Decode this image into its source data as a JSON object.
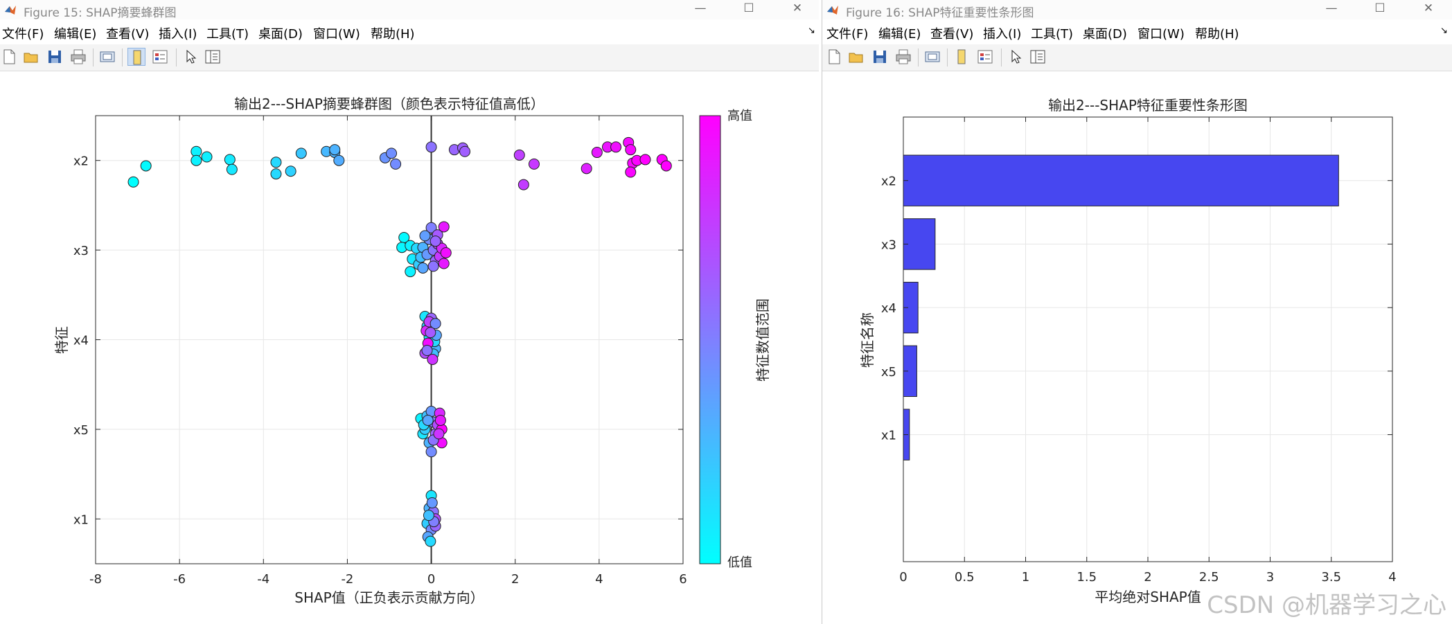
{
  "window1": {
    "title": "Figure 15: SHAP摘要蜂群图",
    "menu": [
      "文件(F)",
      "编辑(E)",
      "查看(V)",
      "插入(I)",
      "工具(T)",
      "桌面(D)",
      "窗口(W)",
      "帮助(H)"
    ]
  },
  "window2": {
    "title": "Figure 16: SHAP特征重要性条形图",
    "menu": [
      "文件(F)",
      "编辑(E)",
      "查看(V)",
      "插入(I)",
      "工具(T)",
      "桌面(D)",
      "窗口(W)",
      "帮助(H)"
    ]
  },
  "toolbar_icons": [
    "new-file-icon",
    "open-folder-icon",
    "save-icon",
    "print-icon",
    "print-preview-icon",
    "dock-figure-icon",
    "property-editor-icon",
    "pointer-icon",
    "plot-browser-icon"
  ],
  "window_controls": {
    "minimize": "—",
    "maximize": "☐",
    "close": "✕"
  },
  "watermark": "CSDN @机器学习之心",
  "colors": {
    "bar": "#4747f0",
    "colormap_low": "#00ffff",
    "colormap_high": "#ff00ff",
    "grid": "#e6e6e6"
  },
  "chart_data": [
    {
      "type": "scatter",
      "title": "输出2---SHAP摘要蜂群图（颜色表示特征值高低）",
      "xlabel": "SHAP值（正负表示贡献方向）",
      "ylabel": "特征",
      "xlim": [
        -8,
        6
      ],
      "xticks": [
        "-8",
        "-6",
        "-4",
        "-2",
        "0",
        "2",
        "4",
        "6"
      ],
      "categories": [
        "x2",
        "x3",
        "x4",
        "x5",
        "x1"
      ],
      "colorbar": {
        "label": "特征数值范围",
        "high_label": "高值",
        "low_label": "低值"
      },
      "grid": true,
      "series": [
        {
          "feature": "x2",
          "points": [
            [
              -7.1,
              -0.24,
              0.0
            ],
            [
              -6.8,
              -0.06,
              0.02
            ],
            [
              -5.6,
              0.1,
              0.05
            ],
            [
              -5.6,
              0.0,
              0.05
            ],
            [
              -5.35,
              0.04,
              0.06
            ],
            [
              -4.8,
              0.01,
              0.08
            ],
            [
              -4.75,
              -0.1,
              0.09
            ],
            [
              -3.7,
              -0.02,
              0.15
            ],
            [
              -3.7,
              -0.15,
              0.15
            ],
            [
              -3.35,
              -0.12,
              0.18
            ],
            [
              -3.1,
              0.08,
              0.22
            ],
            [
              -2.5,
              0.1,
              0.28
            ],
            [
              -2.3,
              0.09,
              0.3
            ],
            [
              -2.3,
              0.12,
              0.3
            ],
            [
              -2.2,
              0.0,
              0.32
            ],
            [
              -1.1,
              0.03,
              0.42
            ],
            [
              -0.95,
              0.08,
              0.44
            ],
            [
              -0.85,
              -0.04,
              0.45
            ],
            [
              0.0,
              0.15,
              0.55
            ],
            [
              0.55,
              0.12,
              0.6
            ],
            [
              0.75,
              0.14,
              0.62
            ],
            [
              0.8,
              0.1,
              0.63
            ],
            [
              2.1,
              0.06,
              0.75
            ],
            [
              2.2,
              -0.27,
              0.76
            ],
            [
              2.45,
              -0.04,
              0.78
            ],
            [
              3.7,
              -0.09,
              0.87
            ],
            [
              3.95,
              0.09,
              0.9
            ],
            [
              4.2,
              0.15,
              0.92
            ],
            [
              4.4,
              0.15,
              0.94
            ],
            [
              4.7,
              0.2,
              0.96
            ],
            [
              4.75,
              0.12,
              0.97
            ],
            [
              4.8,
              -0.03,
              0.98
            ],
            [
              4.75,
              -0.13,
              0.98
            ],
            [
              4.9,
              0.0,
              0.99
            ],
            [
              5.1,
              0.01,
              1.0
            ],
            [
              5.5,
              0.01,
              1.0
            ],
            [
              5.6,
              -0.06,
              1.0
            ]
          ]
        },
        {
          "feature": "x3",
          "points": [
            [
              -0.65,
              0.14,
              0.02
            ],
            [
              -0.7,
              0.03,
              0.03
            ],
            [
              -0.5,
              0.05,
              0.05
            ],
            [
              -0.45,
              -0.1,
              0.08
            ],
            [
              -0.5,
              -0.24,
              0.05
            ],
            [
              -0.35,
              0.02,
              0.15
            ],
            [
              -0.3,
              -0.16,
              0.2
            ],
            [
              -0.25,
              -0.08,
              0.25
            ],
            [
              -0.2,
              0.03,
              0.3
            ],
            [
              -0.2,
              -0.2,
              0.35
            ],
            [
              -0.1,
              -0.05,
              0.4
            ],
            [
              -0.05,
              0.12,
              0.45
            ],
            [
              0.0,
              0.25,
              0.5
            ],
            [
              0.05,
              0.0,
              0.55
            ],
            [
              0.1,
              -0.12,
              0.6
            ],
            [
              0.15,
              0.17,
              0.65
            ],
            [
              0.15,
              0.07,
              0.72
            ],
            [
              0.2,
              -0.07,
              0.78
            ],
            [
              0.25,
              0.02,
              0.85
            ],
            [
              0.3,
              0.26,
              0.9
            ],
            [
              0.35,
              -0.03,
              0.95
            ],
            [
              0.3,
              -0.15,
              0.9
            ],
            [
              -0.15,
              0.16,
              0.38
            ],
            [
              0.1,
              0.1,
              0.6
            ],
            [
              0.05,
              -0.18,
              0.55
            ]
          ]
        },
        {
          "feature": "x4",
          "points": [
            [
              -0.15,
              0.26,
              0.1
            ],
            [
              -0.1,
              0.15,
              0.2
            ],
            [
              -0.05,
              0.03,
              0.05
            ],
            [
              0.0,
              -0.08,
              0.4
            ],
            [
              0.05,
              0.2,
              0.5
            ],
            [
              -0.15,
              -0.15,
              0.7
            ],
            [
              0.1,
              -0.1,
              0.3
            ],
            [
              -0.12,
              0.1,
              0.85
            ],
            [
              0.0,
              0.24,
              0.6
            ],
            [
              0.08,
              -0.02,
              0.15
            ],
            [
              -0.08,
              -0.04,
              0.95
            ],
            [
              0.12,
              0.05,
              0.35
            ],
            [
              -0.05,
              0.2,
              0.75
            ],
            [
              0.05,
              -0.16,
              0.25
            ],
            [
              -0.1,
              -0.12,
              0.55
            ],
            [
              0.1,
              0.18,
              0.45
            ],
            [
              -0.02,
              0.08,
              0.65
            ],
            [
              0.03,
              -0.22,
              0.8
            ]
          ]
        },
        {
          "feature": "x5",
          "points": [
            [
              -0.25,
              0.12,
              0.05
            ],
            [
              -0.2,
              -0.05,
              0.1
            ],
            [
              -0.15,
              0.0,
              0.2
            ],
            [
              -0.1,
              0.15,
              0.25
            ],
            [
              -0.05,
              -0.15,
              0.3
            ],
            [
              0.0,
              0.2,
              0.4
            ],
            [
              0.0,
              -0.25,
              0.45
            ],
            [
              0.05,
              0.08,
              0.5
            ],
            [
              0.1,
              -0.05,
              0.6
            ],
            [
              0.15,
              0.05,
              0.7
            ],
            [
              0.2,
              0.18,
              0.85
            ],
            [
              0.25,
              -0.15,
              0.95
            ],
            [
              0.25,
              0.0,
              1.0
            ],
            [
              0.22,
              0.1,
              0.9
            ],
            [
              -0.18,
              0.05,
              0.15
            ],
            [
              0.05,
              -0.12,
              0.55
            ],
            [
              0.18,
              -0.05,
              0.8
            ],
            [
              -0.08,
              0.1,
              0.35
            ]
          ]
        },
        {
          "feature": "x1",
          "points": [
            [
              0.0,
              0.26,
              0.1
            ],
            [
              -0.05,
              0.12,
              0.3
            ],
            [
              0.05,
              0.08,
              0.55
            ],
            [
              0.1,
              0.0,
              0.7
            ],
            [
              -0.1,
              -0.05,
              0.2
            ],
            [
              0.0,
              -0.12,
              0.45
            ],
            [
              -0.08,
              -0.2,
              0.35
            ],
            [
              0.1,
              -0.08,
              0.6
            ],
            [
              0.02,
              0.18,
              0.4
            ],
            [
              -0.02,
              -0.25,
              0.15
            ],
            [
              0.06,
              -0.03,
              0.5
            ],
            [
              -0.06,
              0.04,
              0.25
            ]
          ]
        }
      ]
    },
    {
      "type": "bar",
      "orientation": "horizontal",
      "title": "输出2---SHAP特征重要性条形图",
      "xlabel": "平均绝对SHAP值",
      "ylabel": "特征名称",
      "xlim": [
        0,
        4
      ],
      "xticks": [
        "0",
        "0.5",
        "1",
        "1.5",
        "2",
        "2.5",
        "3",
        "3.5",
        "4"
      ],
      "categories": [
        "x2",
        "x3",
        "x4",
        "x5",
        "x1"
      ],
      "values": [
        3.56,
        0.26,
        0.12,
        0.11,
        0.05
      ],
      "grid": true
    }
  ]
}
